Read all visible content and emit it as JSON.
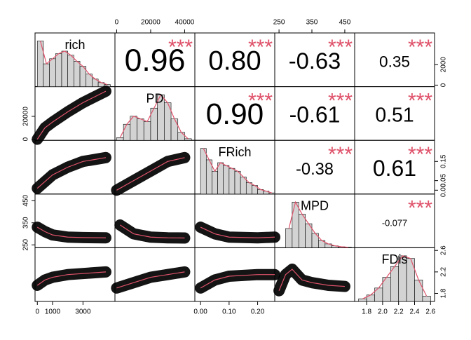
{
  "chart_data": {
    "type": "correlation-matrix",
    "variables": [
      {
        "name": "rich",
        "lim": [
          -150,
          5100
        ],
        "xticks": [
          0,
          1000,
          3000
        ],
        "yticks": [
          0,
          2000
        ],
        "hist": {
          "bins": [
            0,
            400,
            800,
            1200,
            1600,
            2000,
            2400,
            2800,
            3200,
            3600,
            4000,
            4400,
            4800
          ],
          "counts": [
            90,
            45,
            55,
            65,
            70,
            62,
            50,
            40,
            25,
            15,
            8,
            4
          ]
        }
      },
      {
        "name": "PD",
        "lim": [
          -1000,
          46000
        ],
        "xticks": [
          0,
          20000,
          40000
        ],
        "yticks": [
          0,
          20000
        ],
        "hist": {
          "bins": [
            0,
            4000,
            8000,
            12000,
            16000,
            20000,
            24000,
            28000,
            32000,
            36000,
            40000,
            44000
          ],
          "counts": [
            5,
            30,
            45,
            40,
            35,
            60,
            85,
            70,
            40,
            15,
            3
          ]
        }
      },
      {
        "name": "FRich",
        "lim": [
          -0.02,
          0.26
        ],
        "xticks": [
          {
            "value": 0,
            "label": "0.00"
          },
          {
            "value": 0.1,
            "label": "0.10"
          },
          {
            "value": 0.2,
            "label": "0.20"
          }
        ],
        "yticks": [
          {
            "value": 0,
            "label": "0.00"
          },
          {
            "value": 0.05,
            "label": "0.05"
          },
          {
            "value": 0.15,
            "label": "0.15"
          }
        ],
        "hist": {
          "bins": [
            0,
            0.02,
            0.04,
            0.06,
            0.08,
            0.1,
            0.12,
            0.14,
            0.16,
            0.18,
            0.2,
            0.22,
            0.24,
            0.26
          ],
          "counts": [
            80,
            60,
            40,
            55,
            50,
            45,
            40,
            30,
            20,
            15,
            8,
            5,
            2
          ]
        }
      },
      {
        "name": "MPD",
        "lim": [
          237,
          480
        ],
        "xticks": [
          250,
          350,
          450
        ],
        "yticks": [
          250,
          350,
          450
        ],
        "hist": {
          "bins": [
            270,
            290,
            310,
            330,
            350,
            370,
            390,
            410,
            430,
            450,
            470
          ],
          "counts": [
            40,
            95,
            70,
            50,
            30,
            15,
            8,
            4,
            2,
            1
          ]
        }
      },
      {
        "name": "FDis",
        "lim": [
          1.65,
          2.65
        ],
        "xticks": [
          1.8,
          {
            "value": 2,
            "label": "2.0"
          },
          2.2,
          2.4,
          2.6
        ],
        "yticks": [
          1.8,
          2.2,
          2.6
        ],
        "hist": {
          "bins": [
            1.7,
            1.8,
            1.9,
            2.0,
            2.1,
            2.2,
            2.3,
            2.4,
            2.5,
            2.6
          ],
          "counts": [
            5,
            12,
            25,
            45,
            65,
            85,
            80,
            40,
            10
          ]
        }
      }
    ],
    "correlations": [
      {
        "vars": [
          0,
          1
        ],
        "value": 0.96,
        "label": "0.96",
        "stars": "***"
      },
      {
        "vars": [
          0,
          2
        ],
        "value": 0.8,
        "label": "0.80",
        "stars": "***"
      },
      {
        "vars": [
          0,
          3
        ],
        "value": -0.63,
        "label": "-0.63",
        "stars": "***"
      },
      {
        "vars": [
          0,
          4
        ],
        "value": 0.35,
        "label": "0.35",
        "stars": "***"
      },
      {
        "vars": [
          1,
          2
        ],
        "value": 0.9,
        "label": "0.90",
        "stars": "***"
      },
      {
        "vars": [
          1,
          3
        ],
        "value": -0.61,
        "label": "-0.61",
        "stars": "***"
      },
      {
        "vars": [
          1,
          4
        ],
        "value": 0.51,
        "label": "0.51",
        "stars": "***"
      },
      {
        "vars": [
          2,
          3
        ],
        "value": -0.38,
        "label": "-0.38",
        "stars": "***"
      },
      {
        "vars": [
          2,
          4
        ],
        "value": 0.61,
        "label": "0.61",
        "stars": "***"
      },
      {
        "vars": [
          3,
          4
        ],
        "value": -0.077,
        "label": "-0.077",
        "stars": "***"
      }
    ],
    "smooths": [
      {
        "vars": [
          0,
          1
        ],
        "x": [
          0,
          500,
          1000,
          2000,
          3000,
          4500
        ],
        "y": [
          0,
          10000,
          15000,
          24000,
          32000,
          42000
        ]
      },
      {
        "vars": [
          0,
          2
        ],
        "x": [
          0,
          1000,
          2000,
          3000,
          4500
        ],
        "y": [
          0.01,
          0.08,
          0.12,
          0.15,
          0.17
        ]
      },
      {
        "vars": [
          1,
          2
        ],
        "x": [
          0,
          10000,
          20000,
          30000,
          40000
        ],
        "y": [
          0,
          0.05,
          0.1,
          0.15,
          0.17
        ]
      },
      {
        "vars": [
          0,
          3
        ],
        "x": [
          0,
          500,
          1000,
          2000,
          3000,
          4500
        ],
        "y": [
          330,
          310,
          295,
          285,
          283,
          282
        ]
      },
      {
        "vars": [
          1,
          3
        ],
        "x": [
          2000,
          10000,
          20000,
          30000,
          40000
        ],
        "y": [
          340,
          300,
          285,
          282,
          281
        ]
      },
      {
        "vars": [
          2,
          3
        ],
        "x": [
          0,
          0.05,
          0.1,
          0.2,
          0.26
        ],
        "y": [
          330,
          300,
          285,
          282,
          285
        ]
      },
      {
        "vars": [
          0,
          4
        ],
        "x": [
          0,
          500,
          1000,
          2000,
          3000,
          4500
        ],
        "y": [
          1.95,
          2.05,
          2.1,
          2.15,
          2.17,
          2.2
        ]
      },
      {
        "vars": [
          1,
          4
        ],
        "x": [
          0,
          10000,
          20000,
          30000,
          40000
        ],
        "y": [
          1.9,
          2.0,
          2.1,
          2.15,
          2.2
        ]
      },
      {
        "vars": [
          2,
          4
        ],
        "x": [
          0,
          0.05,
          0.1,
          0.2,
          0.26
        ],
        "y": [
          1.9,
          2.05,
          2.12,
          2.15,
          2.15
        ]
      },
      {
        "vars": [
          3,
          4
        ],
        "x": [
          250,
          270,
          290,
          320,
          350,
          400,
          450
        ],
        "y": [
          1.85,
          2.15,
          2.25,
          2.05,
          2.0,
          1.95,
          1.93
        ]
      }
    ]
  }
}
